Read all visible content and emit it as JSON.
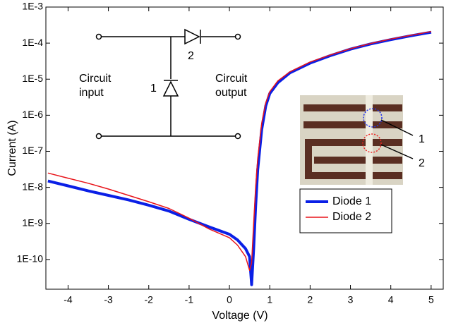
{
  "chart_data": {
    "type": "line",
    "x_label": "Voltage (V)",
    "y_label": "Current (A)",
    "x": [
      -4.5,
      -4,
      -3.5,
      -3,
      -2.5,
      -2,
      -1.5,
      -1,
      -0.5,
      0,
      0.2,
      0.4,
      0.5,
      0.55,
      0.6,
      0.65,
      0.7,
      0.8,
      0.9,
      1,
      1.2,
      1.5,
      2,
      2.5,
      3,
      3.5,
      4,
      4.5,
      5
    ],
    "series": [
      {
        "name": "Diode 1",
        "color": "#0a1fe6",
        "width": 4,
        "values": [
          1.5e-08,
          1.1e-08,
          8e-09,
          6e-09,
          4.5e-09,
          3.2e-09,
          2.2e-09,
          1.3e-09,
          8e-10,
          5e-10,
          3.5e-10,
          2e-10,
          1.2e-10,
          2e-11,
          2e-10,
          3e-09,
          3e-08,
          4e-07,
          1.8e-06,
          4e-06,
          8e-06,
          1.5e-05,
          2.8e-05,
          4.5e-05,
          6.8e-05,
          9.5e-05,
          0.000125,
          0.00016,
          0.0002
        ]
      },
      {
        "name": "Diode 2",
        "color": "#e8141a",
        "width": 1.5,
        "values": [
          2.5e-08,
          1.8e-08,
          1.3e-08,
          9e-09,
          6e-09,
          4e-09,
          2.6e-09,
          1.4e-09,
          7e-10,
          4e-10,
          2.5e-10,
          1.2e-10,
          5e-11,
          8e-11,
          1e-09,
          1e-08,
          6e-08,
          6e-07,
          2.2e-06,
          4.5e-06,
          9e-06,
          1.6e-05,
          3e-05,
          4.7e-05,
          7e-05,
          9.8e-05,
          0.00013,
          0.000165,
          0.00021
        ]
      }
    ],
    "xlim": [
      -4.55,
      5.3
    ],
    "xticks": [
      -4,
      -3,
      -2,
      -1,
      0,
      1,
      2,
      3,
      4,
      5
    ],
    "ylim": [
      1.5e-11,
      0.001
    ],
    "y_scale": "log",
    "yticks": [
      {
        "value": 1e-10,
        "label": "1E-10"
      },
      {
        "value": 1e-09,
        "label": "1E-9"
      },
      {
        "value": 1e-08,
        "label": "1E-8"
      },
      {
        "value": 1e-07,
        "label": "1E-7"
      },
      {
        "value": 1e-06,
        "label": "1E-6"
      },
      {
        "value": 1e-05,
        "label": "1E-5"
      },
      {
        "value": 0.0001,
        "label": "1E-4"
      },
      {
        "value": 0.001,
        "label": "1E-3"
      }
    ],
    "legend": "lower right",
    "annotations": {
      "circuit_input": "Circuit input",
      "circuit_output": "Circuit output",
      "diode_1": "1",
      "diode_2": "2",
      "photo_1": "1",
      "photo_2": "2"
    }
  }
}
